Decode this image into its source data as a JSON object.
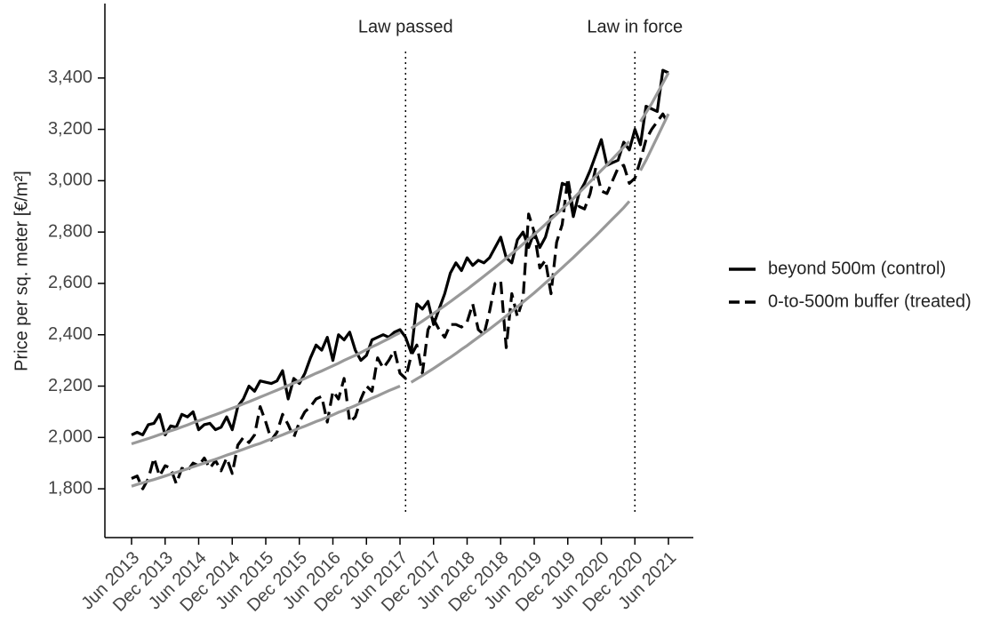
{
  "chart_data": {
    "type": "line",
    "ylabel": "Price per sq. meter [€/m²]",
    "categories": [
      "Jun 2013",
      null,
      null,
      null,
      null,
      null,
      "Dec 2013",
      null,
      null,
      null,
      null,
      null,
      "Jun 2014",
      null,
      null,
      null,
      null,
      null,
      "Dec 2014",
      null,
      null,
      null,
      null,
      null,
      "Jun 2015",
      null,
      null,
      null,
      null,
      null,
      "Dec 2015",
      null,
      null,
      null,
      null,
      null,
      "Jun 2016",
      null,
      null,
      null,
      null,
      null,
      "Dec 2016",
      null,
      null,
      null,
      null,
      null,
      "Jun 2017",
      null,
      null,
      null,
      null,
      null,
      "Dec 2017",
      null,
      null,
      null,
      null,
      null,
      "Jun 2018",
      null,
      null,
      null,
      null,
      null,
      "Dec 2018",
      null,
      null,
      null,
      null,
      null,
      "Jun 2019",
      null,
      null,
      null,
      null,
      null,
      "Dec 2019",
      null,
      null,
      null,
      null,
      null,
      "Jun 2020",
      null,
      null,
      null,
      null,
      null,
      "Dec 2020",
      null,
      null,
      null,
      null,
      null,
      "Jun 2021"
    ],
    "ylim": [
      1610,
      3690
    ],
    "yticks": [
      {
        "value": 1800,
        "label": "1,800"
      },
      {
        "value": 2000,
        "label": "2,000"
      },
      {
        "value": 2200,
        "label": "2,200"
      },
      {
        "value": 2400,
        "label": "2,400"
      },
      {
        "value": 2600,
        "label": "2,600"
      },
      {
        "value": 2800,
        "label": "2,800"
      },
      {
        "value": 3000,
        "label": "3,000"
      },
      {
        "value": 3200,
        "label": "3,200"
      },
      {
        "value": 3400,
        "label": "3,400"
      }
    ],
    "series": [
      {
        "name": "beyond 500m (control)",
        "color": "#000000",
        "dash": "solid",
        "values": [
          2010,
          2020,
          2010,
          2050,
          2055,
          2090,
          2010,
          2045,
          2040,
          2090,
          2080,
          2100,
          2030,
          2050,
          2055,
          2030,
          2040,
          2080,
          2030,
          2120,
          2150,
          2200,
          2180,
          2220,
          2215,
          2210,
          2220,
          2260,
          2150,
          2230,
          2210,
          2250,
          2310,
          2360,
          2340,
          2390,
          2300,
          2400,
          2380,
          2410,
          2340,
          2300,
          2320,
          2380,
          2390,
          2400,
          2390,
          2410,
          2420,
          2390,
          2330,
          2520,
          2500,
          2530,
          2440,
          2500,
          2560,
          2640,
          2680,
          2650,
          2700,
          2670,
          2690,
          2680,
          2700,
          2740,
          2780,
          2700,
          2680,
          2770,
          2800,
          2740,
          2800,
          2740,
          2780,
          2860,
          2870,
          2990,
          2980,
          2860,
          2950,
          2990,
          3040,
          3100,
          3160,
          3060,
          3070,
          3080,
          3150,
          3120,
          3200,
          3140,
          3290,
          3280,
          3270,
          3430,
          3420
        ]
      },
      {
        "name": "0-to-500m buffer (treated)",
        "color": "#000000",
        "dash": "dashed",
        "values": [
          1840,
          1850,
          1800,
          1840,
          1920,
          1850,
          1890,
          1880,
          1820,
          1880,
          1870,
          1900,
          1890,
          1920,
          1880,
          1910,
          1870,
          1920,
          1860,
          1970,
          2000,
          1980,
          2010,
          2120,
          2060,
          1990,
          2020,
          2090,
          2050,
          2000,
          2060,
          2100,
          2120,
          2150,
          2160,
          2060,
          2180,
          2150,
          2230,
          2060,
          2080,
          2150,
          2200,
          2180,
          2310,
          2270,
          2300,
          2340,
          2250,
          2230,
          2320,
          2360,
          2250,
          2420,
          2460,
          2420,
          2390,
          2440,
          2440,
          2430,
          2450,
          2520,
          2420,
          2400,
          2490,
          2600,
          2610,
          2350,
          2560,
          2470,
          2540,
          2870,
          2800,
          2660,
          2690,
          2560,
          2760,
          2830,
          3010,
          2880,
          2900,
          2890,
          2950,
          3050,
          2960,
          2950,
          3000,
          3050,
          3060,
          2990,
          3010,
          3080,
          3160,
          3200,
          3230,
          3260,
          3220
        ]
      }
    ],
    "trends": [
      {
        "color": "#999999",
        "values": [
          1975,
          1982,
          1989,
          1996,
          2003,
          2011,
          2018,
          2026,
          2033,
          2041,
          2049,
          2057,
          2065,
          2073,
          2081,
          2089,
          2097,
          2106,
          2114,
          2122,
          2131,
          2139,
          2148,
          2157,
          2166,
          2175,
          2184,
          2193,
          2202,
          2212,
          2221,
          2230,
          2240,
          2250,
          2259,
          2269,
          2279,
          2289,
          2300,
          2310,
          2320,
          2331,
          2342,
          2353,
          2363,
          2374,
          2385,
          2397,
          2408,
          null,
          2425,
          2439,
          2453,
          2468,
          2483,
          2498,
          2513,
          2529,
          2545,
          2561,
          2577,
          2594,
          2611,
          2628,
          2645,
          2662,
          2680,
          2698,
          2716,
          2734,
          2753,
          2772,
          2791,
          2810,
          2830,
          2850,
          2870,
          2890,
          2910,
          2931,
          2953,
          2974,
          2996,
          3018,
          3040,
          3062,
          3085,
          3108,
          3131,
          3153,
          null,
          3230,
          3265,
          3300,
          3340,
          3380,
          3420
        ]
      },
      {
        "color": "#999999",
        "values": [
          1810,
          1817,
          1823,
          1830,
          1836,
          1843,
          1850,
          1857,
          1864,
          1871,
          1878,
          1886,
          1893,
          1900,
          1908,
          1915,
          1923,
          1931,
          1938,
          1946,
          1954,
          1962,
          1970,
          1977,
          1986,
          1994,
          2002,
          2010,
          2019,
          2027,
          2036,
          2044,
          2053,
          2062,
          2070,
          2079,
          2088,
          2098,
          2106,
          2115,
          2124,
          2134,
          2143,
          2153,
          2162,
          2172,
          2182,
          2191,
          2200,
          null,
          2215,
          2228,
          2241,
          2255,
          2269,
          2283,
          2298,
          2312,
          2327,
          2343,
          2358,
          2374,
          2390,
          2406,
          2422,
          2439,
          2456,
          2473,
          2491,
          2509,
          2527,
          2545,
          2563,
          2582,
          2602,
          2621,
          2641,
          2661,
          2681,
          2701,
          2722,
          2743,
          2764,
          2785,
          2807,
          2829,
          2851,
          2873,
          2895,
          2920,
          null,
          3040,
          3080,
          3125,
          3170,
          3215,
          3260
        ]
      }
    ],
    "vlines": [
      {
        "label": "Law passed",
        "x": 49
      },
      {
        "label": "Law in force",
        "x": 90
      }
    ]
  }
}
